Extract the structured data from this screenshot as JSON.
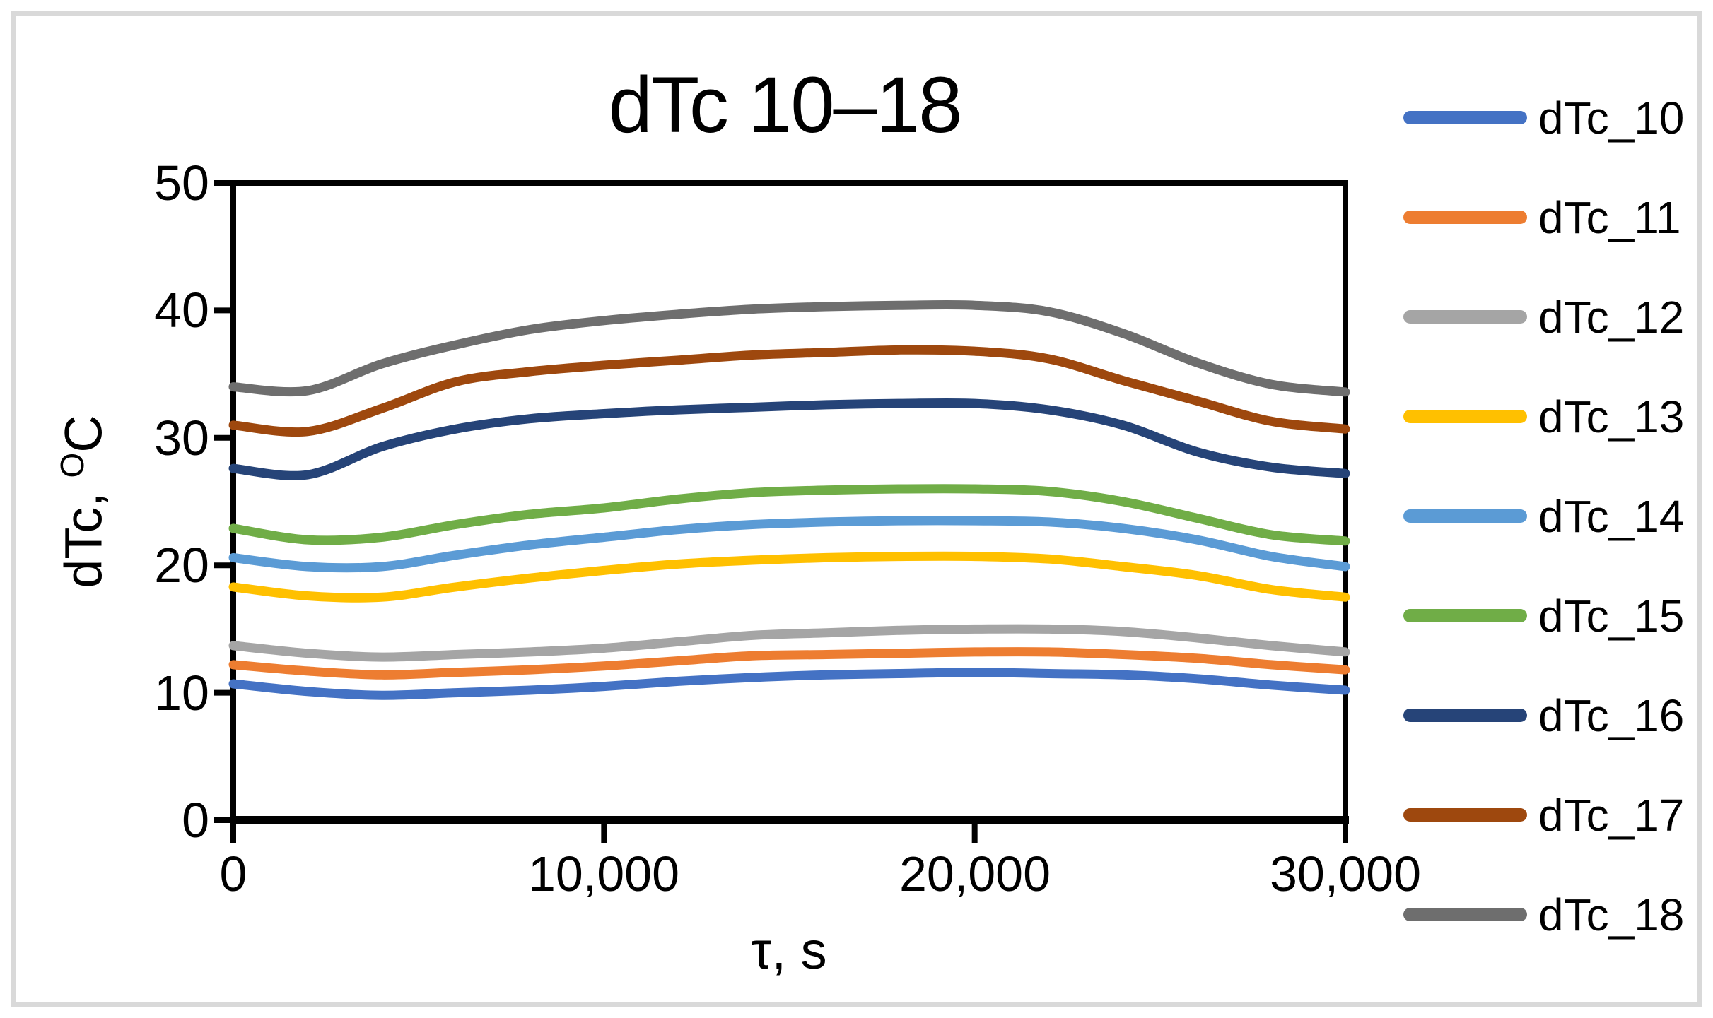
{
  "chart": {
    "title": "dTc 10–18",
    "x_axis_title": "τ, s",
    "y_axis_title_parts": {
      "prefix": "dTc, ",
      "sup": "O",
      "suffix": "C"
    }
  },
  "chart_data": {
    "type": "line",
    "title": "dTc 10–18",
    "xlabel": "τ, s",
    "ylabel": "dTc, °C",
    "xlim": [
      0,
      30000
    ],
    "ylim": [
      0,
      50
    ],
    "grid": false,
    "legend_position": "right",
    "x_ticks": [
      0,
      10000,
      20000,
      30000
    ],
    "x_tick_labels": [
      "0",
      "10,000",
      "20,000",
      "30,000"
    ],
    "y_ticks": [
      0,
      10,
      20,
      30,
      40,
      50
    ],
    "y_tick_labels": [
      "0",
      "10",
      "20",
      "30",
      "40",
      "50"
    ],
    "x": [
      0,
      2000,
      4000,
      6000,
      8000,
      10000,
      12000,
      14000,
      16000,
      18000,
      20000,
      22000,
      24000,
      26000,
      28000,
      30000
    ],
    "series": [
      {
        "name": "dTc_10",
        "color": "#4472C4",
        "values": [
          10.7,
          10.1,
          9.8,
          10.0,
          10.2,
          10.5,
          10.9,
          11.2,
          11.4,
          11.5,
          11.6,
          11.5,
          11.4,
          11.1,
          10.6,
          10.2
        ]
      },
      {
        "name": "dTc_11",
        "color": "#ED7D31",
        "values": [
          12.2,
          11.7,
          11.4,
          11.6,
          11.8,
          12.1,
          12.5,
          12.9,
          13.0,
          13.1,
          13.2,
          13.2,
          13.0,
          12.7,
          12.2,
          11.8
        ]
      },
      {
        "name": "dTc_12",
        "color": "#A5A5A5",
        "values": [
          13.7,
          13.1,
          12.8,
          13.0,
          13.2,
          13.5,
          14.0,
          14.5,
          14.7,
          14.9,
          15.0,
          15.0,
          14.8,
          14.3,
          13.7,
          13.2
        ]
      },
      {
        "name": "dTc_13",
        "color": "#FFC000",
        "values": [
          18.3,
          17.6,
          17.5,
          18.3,
          19.0,
          19.6,
          20.1,
          20.4,
          20.6,
          20.7,
          20.7,
          20.5,
          19.9,
          19.2,
          18.1,
          17.5
        ]
      },
      {
        "name": "dTc_14",
        "color": "#5B9BD5",
        "values": [
          20.6,
          19.9,
          19.9,
          20.8,
          21.6,
          22.2,
          22.8,
          23.2,
          23.4,
          23.5,
          23.5,
          23.4,
          22.9,
          22.0,
          20.7,
          19.9
        ]
      },
      {
        "name": "dTc_15",
        "color": "#70AD47",
        "values": [
          22.9,
          22.0,
          22.2,
          23.2,
          24.0,
          24.5,
          25.2,
          25.7,
          25.9,
          26.0,
          26.0,
          25.8,
          25.0,
          23.7,
          22.4,
          21.9
        ]
      },
      {
        "name": "dTc_16",
        "color": "#264478",
        "values": [
          27.6,
          27.1,
          29.3,
          30.7,
          31.5,
          31.9,
          32.2,
          32.4,
          32.6,
          32.7,
          32.7,
          32.2,
          31.0,
          28.9,
          27.7,
          27.2
        ]
      },
      {
        "name": "dTc_17",
        "color": "#9E480E",
        "values": [
          31.0,
          30.5,
          32.3,
          34.4,
          35.2,
          35.7,
          36.1,
          36.5,
          36.7,
          36.9,
          36.8,
          36.2,
          34.5,
          32.9,
          31.3,
          30.7
        ]
      },
      {
        "name": "dTc_18",
        "color": "#6E6E6E",
        "values": [
          34.0,
          33.7,
          35.8,
          37.3,
          38.5,
          39.2,
          39.7,
          40.1,
          40.3,
          40.4,
          40.4,
          39.9,
          38.2,
          35.9,
          34.2,
          33.6
        ]
      }
    ],
    "colors": {
      "axis": "#000000",
      "picture_border": "#D9D9D9",
      "background": "#FFFFFF"
    }
  }
}
